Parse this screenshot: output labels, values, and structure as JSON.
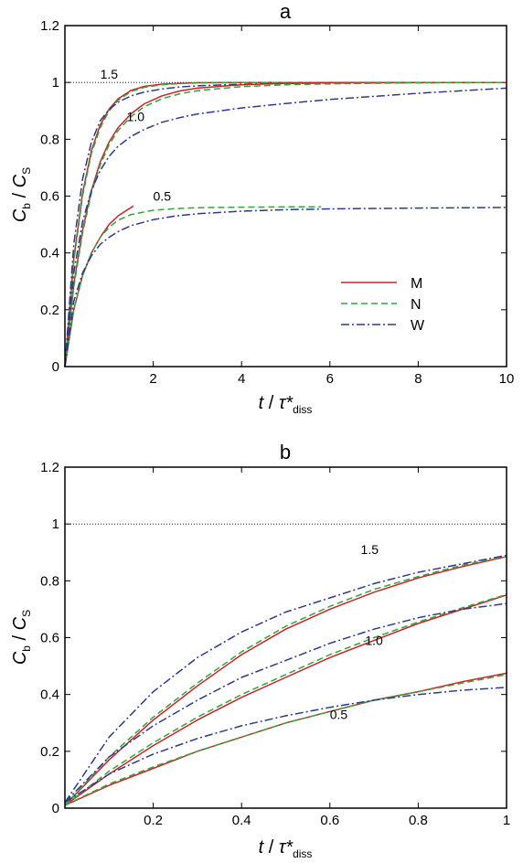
{
  "chart_data": [
    {
      "type": "line",
      "title": "a",
      "xlabel": {
        "main": "t",
        "denom": "τ*",
        "sub": "diss"
      },
      "ylabel": {
        "c1": "C",
        "sub1": "b",
        "c2": "C",
        "sub2": "S"
      },
      "xlim": [
        0,
        10
      ],
      "ylim": [
        0,
        1.2
      ],
      "xticks": [
        2,
        4,
        6,
        8,
        10
      ],
      "yticks": [
        0,
        0.2,
        0.4,
        0.6,
        0.8,
        1,
        1.2
      ],
      "ytick_labels": [
        "0",
        "0.2",
        "0.4",
        "0.6",
        "0.8",
        "1",
        "1.2"
      ],
      "reference_line": 1,
      "legend": {
        "position": "lower-right",
        "entries": [
          "M",
          "N",
          "W"
        ]
      },
      "annotations": [
        {
          "text": "1.5",
          "x": 1.0,
          "y": 1.03
        },
        {
          "text": "1.0",
          "x": 1.6,
          "y": 0.88
        },
        {
          "text": "0.5",
          "x": 2.2,
          "y": 0.6
        }
      ],
      "series": [
        {
          "name": "M",
          "group": "1.5",
          "x": [
            0,
            0.2,
            0.4,
            0.6,
            0.8,
            1.0,
            1.2,
            1.5,
            1.8,
            2.2,
            2.6,
            3.0,
            4.0,
            6.0,
            10.0
          ],
          "y": [
            0,
            0.38,
            0.61,
            0.76,
            0.85,
            0.906,
            0.942,
            0.972,
            0.986,
            0.994,
            0.997,
            0.999,
            1.0,
            1.0,
            1.0
          ]
        },
        {
          "name": "N",
          "group": "1.5",
          "x": [
            0,
            0.2,
            0.4,
            0.6,
            0.8,
            1.0,
            1.2,
            1.5,
            1.8,
            2.2,
            2.6,
            3.0,
            4.0,
            6.0,
            10.0
          ],
          "y": [
            0,
            0.37,
            0.6,
            0.75,
            0.84,
            0.9,
            0.937,
            0.968,
            0.983,
            0.992,
            0.996,
            0.998,
            1.0,
            1.0,
            1.0
          ]
        },
        {
          "name": "W",
          "group": "1.5",
          "x": [
            0,
            0.2,
            0.4,
            0.6,
            0.8,
            1.0,
            1.2,
            1.5,
            1.8,
            2.2,
            2.6,
            3.0,
            4.0,
            6.0,
            10.0
          ],
          "y": [
            0,
            0.43,
            0.66,
            0.79,
            0.865,
            0.905,
            0.93,
            0.953,
            0.966,
            0.977,
            0.984,
            0.988,
            0.994,
            0.998,
            1.0
          ]
        },
        {
          "name": "M",
          "group": "1.0",
          "x": [
            0,
            0.2,
            0.4,
            0.6,
            0.8,
            1.0,
            1.2,
            1.5,
            1.8,
            2.2,
            2.6,
            3.0,
            4.0,
            5.0,
            6.0,
            8.0,
            10.0
          ],
          "y": [
            0,
            0.29,
            0.48,
            0.62,
            0.72,
            0.79,
            0.84,
            0.89,
            0.925,
            0.953,
            0.97,
            0.98,
            0.992,
            0.997,
            0.999,
            1.0,
            1.0
          ]
        },
        {
          "name": "N",
          "group": "1.0",
          "x": [
            0,
            0.2,
            0.4,
            0.6,
            0.8,
            1.0,
            1.2,
            1.5,
            1.8,
            2.2,
            2.6,
            3.0,
            4.0,
            5.0,
            6.0,
            8.0,
            10.0
          ],
          "y": [
            0,
            0.28,
            0.47,
            0.61,
            0.71,
            0.78,
            0.83,
            0.88,
            0.915,
            0.943,
            0.96,
            0.971,
            0.985,
            0.992,
            0.995,
            0.999,
            1.0
          ]
        },
        {
          "name": "W",
          "group": "1.0",
          "x": [
            0,
            0.2,
            0.4,
            0.6,
            0.8,
            1.0,
            1.2,
            1.5,
            1.8,
            2.2,
            2.6,
            3.0,
            4.0,
            5.0,
            6.0,
            8.0,
            10.0
          ],
          "y": [
            0,
            0.33,
            0.51,
            0.62,
            0.69,
            0.74,
            0.775,
            0.81,
            0.835,
            0.86,
            0.876,
            0.889,
            0.91,
            0.926,
            0.94,
            0.962,
            0.98
          ]
        },
        {
          "name": "M",
          "group": "0.5",
          "x": [
            0,
            0.2,
            0.4,
            0.6,
            0.8,
            1.0,
            1.2,
            1.4,
            1.55
          ],
          "y": [
            0,
            0.2,
            0.32,
            0.4,
            0.455,
            0.5,
            0.53,
            0.55,
            0.565
          ]
        },
        {
          "name": "N",
          "group": "0.5",
          "x": [
            0,
            0.2,
            0.4,
            0.6,
            0.8,
            1.0,
            1.2,
            1.5,
            2.0,
            2.5,
            3.0,
            4.0,
            5.0,
            5.8
          ],
          "y": [
            0,
            0.2,
            0.32,
            0.4,
            0.455,
            0.49,
            0.515,
            0.535,
            0.55,
            0.556,
            0.559,
            0.561,
            0.562,
            0.562
          ]
        },
        {
          "name": "W",
          "group": "0.5",
          "x": [
            0,
            0.2,
            0.4,
            0.6,
            0.8,
            1.0,
            1.2,
            1.5,
            2.0,
            2.5,
            3.0,
            4.0,
            5.0,
            6.0,
            8.0,
            10.0
          ],
          "y": [
            0,
            0.23,
            0.33,
            0.39,
            0.43,
            0.455,
            0.475,
            0.496,
            0.517,
            0.53,
            0.538,
            0.547,
            0.552,
            0.555,
            0.558,
            0.56
          ]
        }
      ]
    },
    {
      "type": "line",
      "title": "b",
      "xlabel": {
        "main": "t",
        "denom": "τ*",
        "sub": "diss"
      },
      "ylabel": {
        "c1": "C",
        "sub1": "b",
        "c2": "C",
        "sub2": "S"
      },
      "xlim": [
        0,
        1
      ],
      "ylim": [
        0,
        1.2
      ],
      "xticks": [
        0.2,
        0.4,
        0.6,
        0.8,
        1
      ],
      "xtick_labels": [
        "0.2",
        "0.4",
        "0.6",
        "0.8",
        "1"
      ],
      "yticks": [
        0,
        0.2,
        0.4,
        0.6,
        0.8,
        1,
        1.2
      ],
      "ytick_labels": [
        "0",
        "0.2",
        "0.4",
        "0.6",
        "0.8",
        "1",
        "1.2"
      ],
      "reference_line": 1,
      "annotations": [
        {
          "text": "1.5",
          "x": 0.69,
          "y": 0.91
        },
        {
          "text": "1.0",
          "x": 0.7,
          "y": 0.59
        },
        {
          "text": "0.5",
          "x": 0.62,
          "y": 0.33
        }
      ],
      "series": [
        {
          "name": "M",
          "group": "1.5",
          "x": [
            0,
            0.1,
            0.2,
            0.3,
            0.4,
            0.5,
            0.6,
            0.7,
            0.8,
            0.9,
            1.0
          ],
          "y": [
            0.01,
            0.17,
            0.31,
            0.43,
            0.54,
            0.63,
            0.7,
            0.76,
            0.81,
            0.85,
            0.885
          ]
        },
        {
          "name": "N",
          "group": "1.5",
          "x": [
            0,
            0.1,
            0.2,
            0.3,
            0.4,
            0.5,
            0.6,
            0.7,
            0.8,
            0.9,
            1.0
          ],
          "y": [
            0.01,
            0.18,
            0.32,
            0.44,
            0.55,
            0.64,
            0.71,
            0.77,
            0.815,
            0.855,
            0.885
          ]
        },
        {
          "name": "W",
          "group": "1.5",
          "x": [
            0,
            0.1,
            0.2,
            0.3,
            0.4,
            0.5,
            0.6,
            0.7,
            0.8,
            0.9,
            1.0
          ],
          "y": [
            0.02,
            0.25,
            0.41,
            0.53,
            0.62,
            0.69,
            0.74,
            0.79,
            0.83,
            0.86,
            0.89
          ]
        },
        {
          "name": "M",
          "group": "1.0",
          "x": [
            0,
            0.1,
            0.2,
            0.3,
            0.4,
            0.5,
            0.6,
            0.7,
            0.8,
            0.9,
            1.0
          ],
          "y": [
            0.01,
            0.12,
            0.22,
            0.31,
            0.39,
            0.46,
            0.53,
            0.59,
            0.65,
            0.7,
            0.75
          ]
        },
        {
          "name": "N",
          "group": "1.0",
          "x": [
            0,
            0.1,
            0.2,
            0.3,
            0.4,
            0.5,
            0.6,
            0.7,
            0.8,
            0.9,
            1.0
          ],
          "y": [
            0.01,
            0.13,
            0.23,
            0.32,
            0.4,
            0.47,
            0.54,
            0.6,
            0.655,
            0.705,
            0.752
          ]
        },
        {
          "name": "W",
          "group": "1.0",
          "x": [
            0,
            0.1,
            0.2,
            0.3,
            0.4,
            0.5,
            0.6,
            0.7,
            0.8,
            0.9,
            1.0
          ],
          "y": [
            0.02,
            0.18,
            0.29,
            0.38,
            0.46,
            0.52,
            0.58,
            0.63,
            0.67,
            0.7,
            0.72
          ]
        },
        {
          "name": "M",
          "group": "0.5",
          "x": [
            0,
            0.1,
            0.2,
            0.3,
            0.4,
            0.5,
            0.6,
            0.7,
            0.8,
            0.9,
            1.0
          ],
          "y": [
            0.01,
            0.08,
            0.14,
            0.2,
            0.25,
            0.3,
            0.34,
            0.38,
            0.41,
            0.445,
            0.475
          ]
        },
        {
          "name": "N",
          "group": "0.5",
          "x": [
            0,
            0.1,
            0.2,
            0.3,
            0.4,
            0.5,
            0.6,
            0.7,
            0.8,
            0.9,
            1.0
          ],
          "y": [
            0.01,
            0.085,
            0.145,
            0.2,
            0.25,
            0.3,
            0.34,
            0.38,
            0.41,
            0.44,
            0.47
          ]
        },
        {
          "name": "W",
          "group": "0.5",
          "x": [
            0,
            0.1,
            0.2,
            0.3,
            0.4,
            0.5,
            0.6,
            0.7,
            0.8,
            0.9,
            1.0
          ],
          "y": [
            0.02,
            0.12,
            0.19,
            0.245,
            0.29,
            0.325,
            0.355,
            0.38,
            0.4,
            0.415,
            0.425
          ]
        }
      ]
    }
  ],
  "styles": {
    "M": {
      "color": "#cc2229",
      "dash": ""
    },
    "N": {
      "color": "#2fa836",
      "dash": "7,4"
    },
    "W": {
      "color": "#2b3990",
      "dash": "9,3,2,3"
    },
    "reference_line_color": "#000000"
  }
}
